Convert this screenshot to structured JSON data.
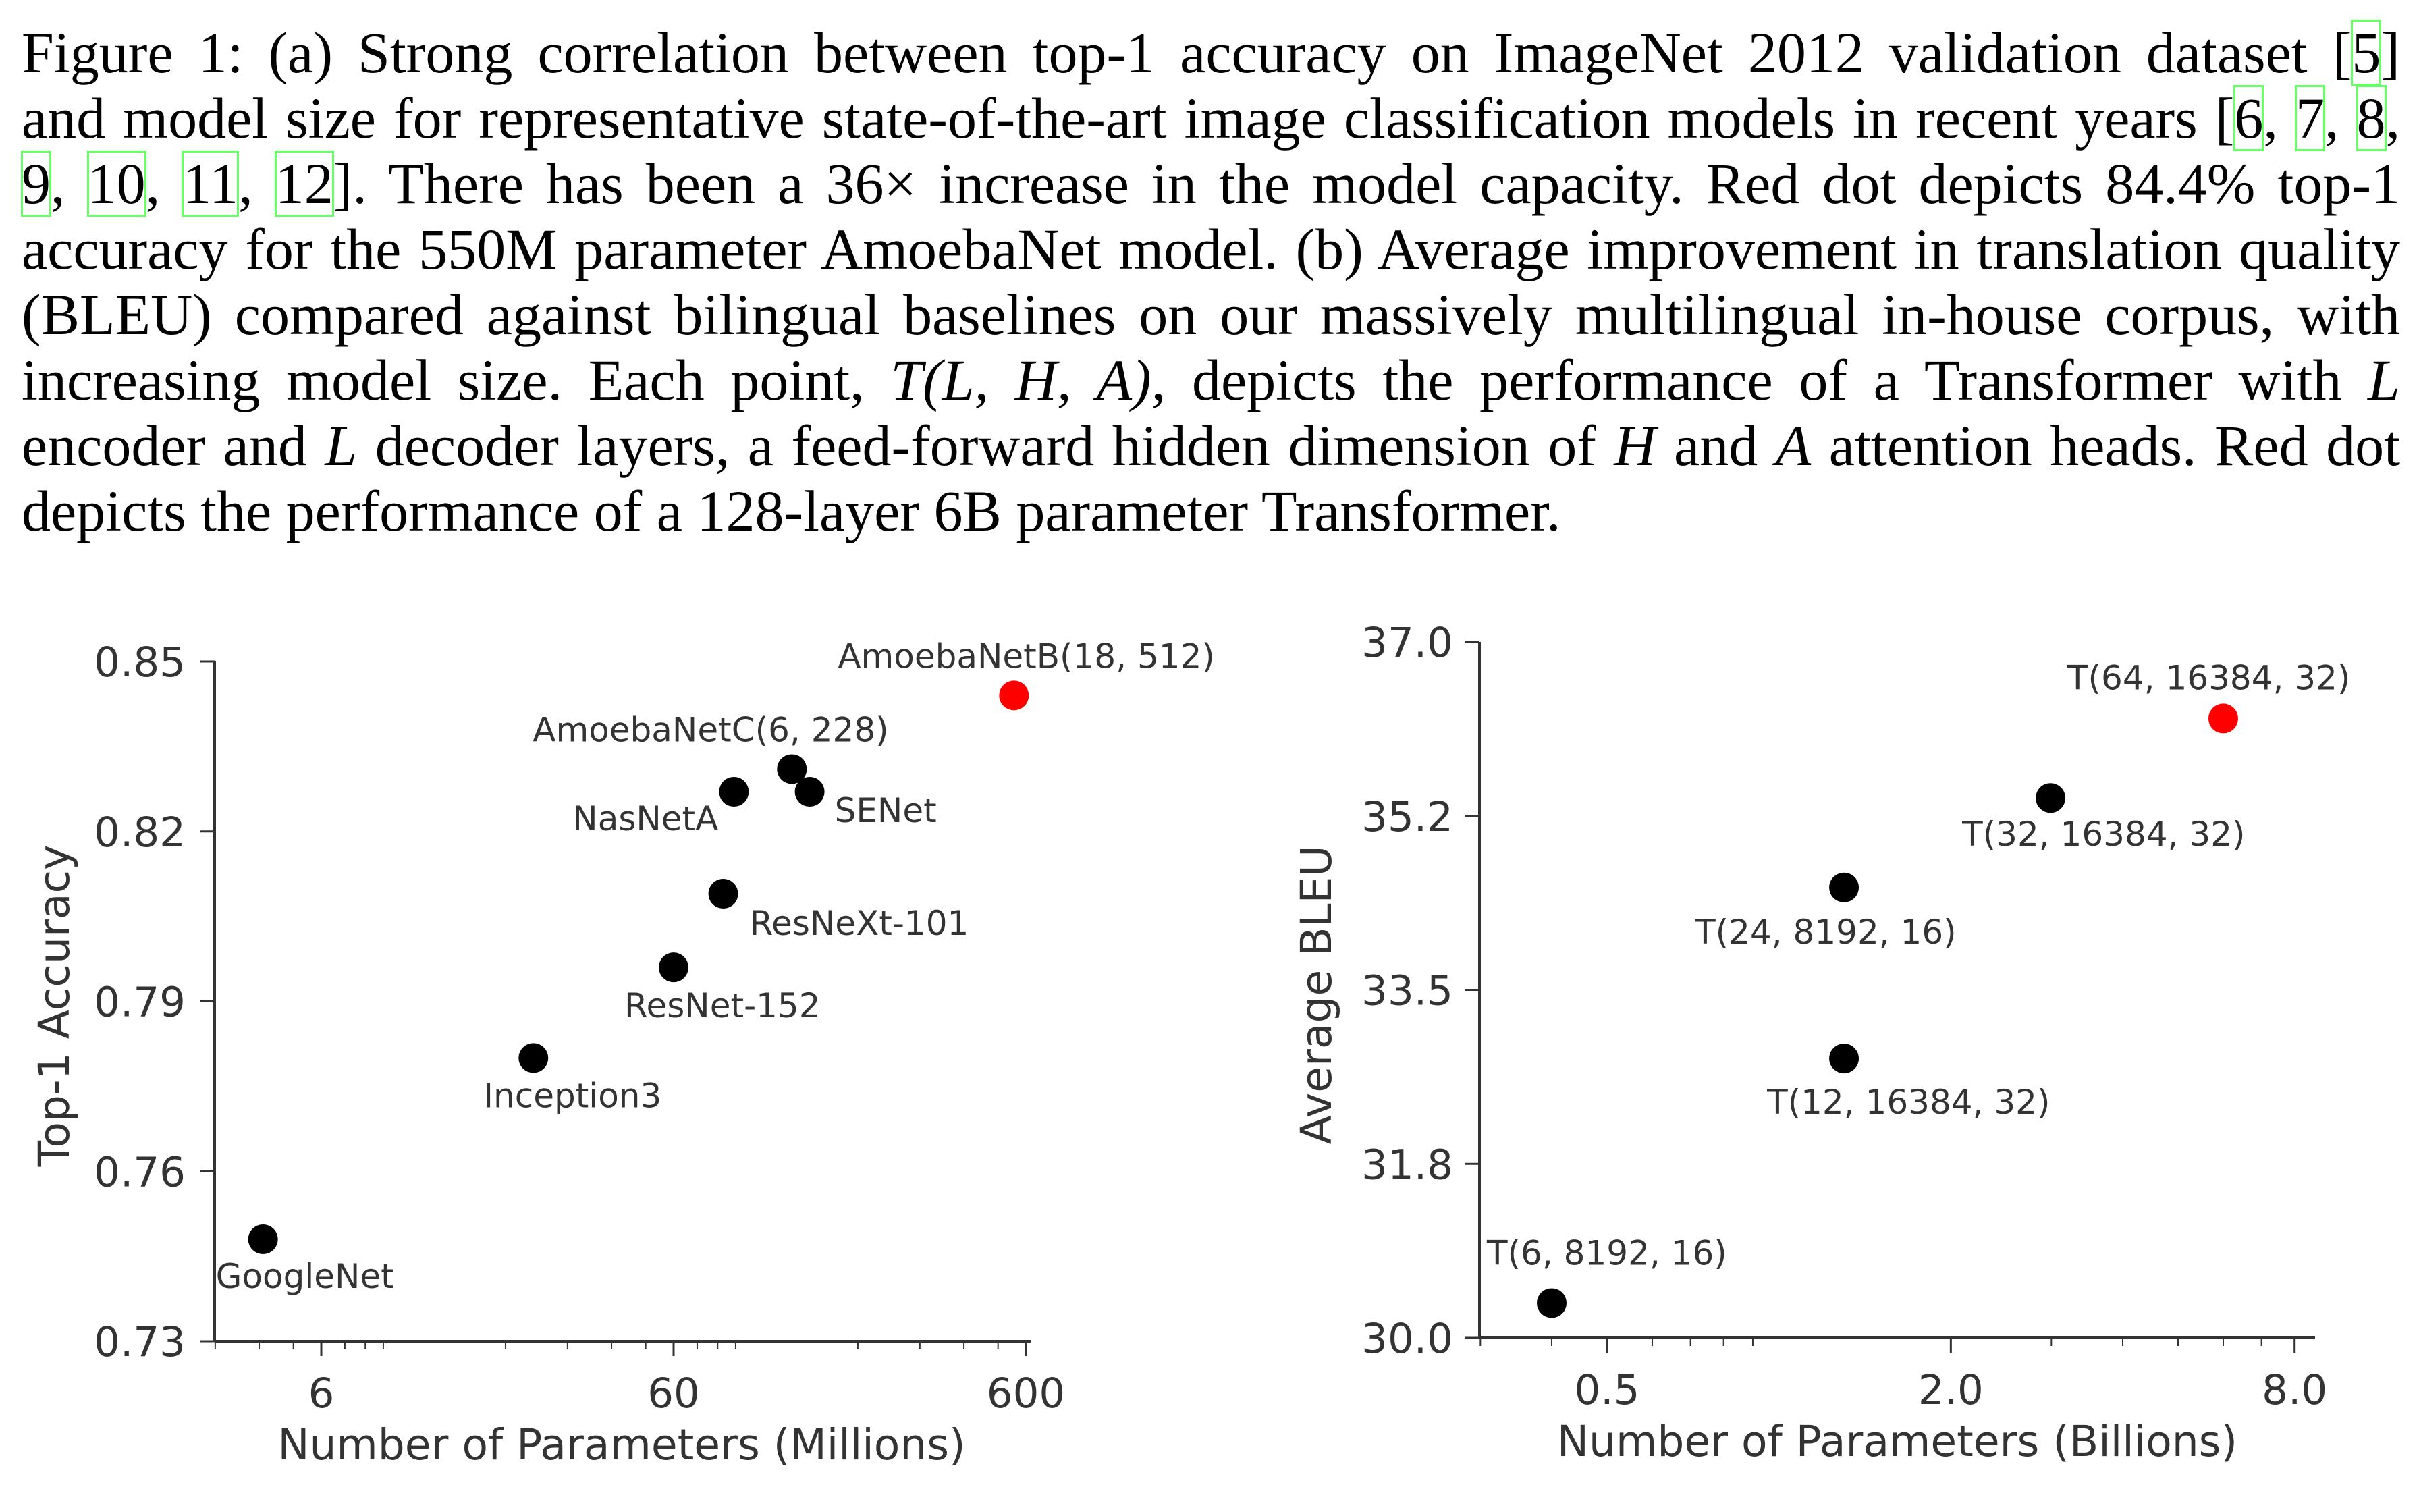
{
  "caption": {
    "lines": [
      [
        {
          "t": "text",
          "v": "Figure 1: (a) Strong correlation between top-1 accuracy on ImageNet 2012 validation dataset ["
        },
        {
          "t": "cite",
          "v": "5"
        },
        {
          "t": "text",
          "v": "]"
        }
      ],
      [
        {
          "t": "text",
          "v": "and model size for representative state-of-the-art image classification models in recent years ["
        },
        {
          "t": "cite",
          "v": "6"
        },
        {
          "t": "text",
          "v": ", "
        },
        {
          "t": "cite",
          "v": "7"
        },
        {
          "t": "text",
          "v": ", "
        },
        {
          "t": "cite",
          "v": "8"
        },
        {
          "t": "text",
          "v": ","
        }
      ],
      [
        {
          "t": "cite",
          "v": "9"
        },
        {
          "t": "text",
          "v": ", "
        },
        {
          "t": "cite",
          "v": "10"
        },
        {
          "t": "text",
          "v": ", "
        },
        {
          "t": "cite",
          "v": "11"
        },
        {
          "t": "text",
          "v": ", "
        },
        {
          "t": "cite",
          "v": "12"
        },
        {
          "t": "text",
          "v": "]. There has been a 36× increase in the model capacity. Red dot depicts 84.4% top-1"
        }
      ],
      [
        {
          "t": "text",
          "v": "accuracy for the 550M parameter AmoebaNet model. (b) Average improvement in translation quality"
        }
      ],
      [
        {
          "t": "text",
          "v": "(BLEU) compared against bilingual baselines on our massively multilingual in-house corpus, with"
        }
      ],
      [
        {
          "t": "text",
          "v": "increasing model size. Each point, "
        },
        {
          "t": "math",
          "v": "T(L, H, A)"
        },
        {
          "t": "text",
          "v": ", depicts the performance of a Transformer with "
        },
        {
          "t": "math",
          "v": "L"
        }
      ],
      [
        {
          "t": "text",
          "v": "encoder and "
        },
        {
          "t": "math",
          "v": "L"
        },
        {
          "t": "text",
          "v": " decoder layers, a feed-forward hidden dimension of "
        },
        {
          "t": "math",
          "v": "H"
        },
        {
          "t": "text",
          "v": " and "
        },
        {
          "t": "math",
          "v": "A"
        },
        {
          "t": "text",
          "v": " attention heads. Red dot"
        }
      ],
      [
        {
          "t": "text",
          "v": "depicts the performance of a 128-layer 6B parameter Transformer."
        }
      ]
    ]
  },
  "colors": {
    "point": "#000000",
    "highlight": "#ff0000",
    "axis": "#333333",
    "citation_box": "#66ff66"
  },
  "chart_data": [
    {
      "type": "scatter",
      "panel": "a",
      "title": "",
      "xlabel": "Number of Parameters (Millions)",
      "ylabel": "Top-1 Accuracy",
      "xscale": "log",
      "xlim": [
        3,
        620
      ],
      "ylim": [
        0.73,
        0.85
      ],
      "grid": false,
      "legend": "none",
      "xticks": [
        {
          "value": 6,
          "label": "6"
        },
        {
          "value": 60,
          "label": "60"
        },
        {
          "value": 600,
          "label": "600"
        }
      ],
      "xminor": [
        3,
        4,
        5,
        7,
        8,
        9,
        20,
        30,
        40,
        50,
        70,
        80,
        90,
        200,
        300,
        400,
        500
      ],
      "yticks": [
        {
          "value": 0.85,
          "label": "0.85"
        },
        {
          "value": 0.82,
          "label": "0.82"
        },
        {
          "value": 0.79,
          "label": "0.79"
        },
        {
          "value": 0.76,
          "label": "0.76"
        },
        {
          "value": 0.73,
          "label": "0.73"
        }
      ],
      "points": [
        {
          "label": "GoogleNet",
          "x": 4.1,
          "y": 0.748,
          "highlight": false
        },
        {
          "label": "Inception3",
          "x": 24,
          "y": 0.78,
          "highlight": false
        },
        {
          "label": "ResNet-152",
          "x": 60,
          "y": 0.796,
          "highlight": false
        },
        {
          "label": "ResNeXt-101",
          "x": 83,
          "y": 0.809,
          "highlight": false
        },
        {
          "label": "NasNetA",
          "x": 89,
          "y": 0.827,
          "highlight": false
        },
        {
          "label": "AmoebaNetC(6, 228)",
          "x": 130,
          "y": 0.831,
          "highlight": false
        },
        {
          "label": "SENet",
          "x": 146,
          "y": 0.827,
          "highlight": false
        },
        {
          "label": "AmoebaNetB(18, 512)",
          "x": 555,
          "y": 0.844,
          "highlight": true
        }
      ]
    },
    {
      "type": "scatter",
      "panel": "b",
      "title": "",
      "xlabel": "Number of Parameters (Billions)",
      "ylabel": "Average BLEU",
      "xscale": "log",
      "xlim": [
        0.3,
        8.6
      ],
      "ylim": [
        30.0,
        37.0
      ],
      "grid": false,
      "legend": "none",
      "xticks": [
        {
          "value": 0.5,
          "label": "0.5"
        },
        {
          "value": 2.0,
          "label": "2.0"
        },
        {
          "value": 8.0,
          "label": "8.0"
        }
      ],
      "xminor": [
        0.3,
        0.4,
        0.6,
        0.7,
        0.8,
        0.9,
        3,
        4,
        5,
        6,
        7
      ],
      "yticks": [
        {
          "value": 37.0,
          "label": "37.0"
        },
        {
          "value": 35.25,
          "label": "35.2"
        },
        {
          "value": 33.5,
          "label": "33.5"
        },
        {
          "value": 31.75,
          "label": "31.8"
        },
        {
          "value": 30.0,
          "label": "30.0"
        }
      ],
      "points": [
        {
          "label": "T(6, 8192, 16)",
          "x": 0.4,
          "y": 30.35,
          "highlight": false
        },
        {
          "label": "T(12, 16384, 32)",
          "x": 1.3,
          "y": 32.81,
          "highlight": false
        },
        {
          "label": "T(24, 8192, 16)",
          "x": 1.3,
          "y": 34.53,
          "highlight": false
        },
        {
          "label": "T(32, 16384, 32)",
          "x": 2.99,
          "y": 35.43,
          "highlight": false
        },
        {
          "label": "T(64, 16384, 32)",
          "x": 6.0,
          "y": 36.23,
          "highlight": true
        }
      ]
    }
  ]
}
